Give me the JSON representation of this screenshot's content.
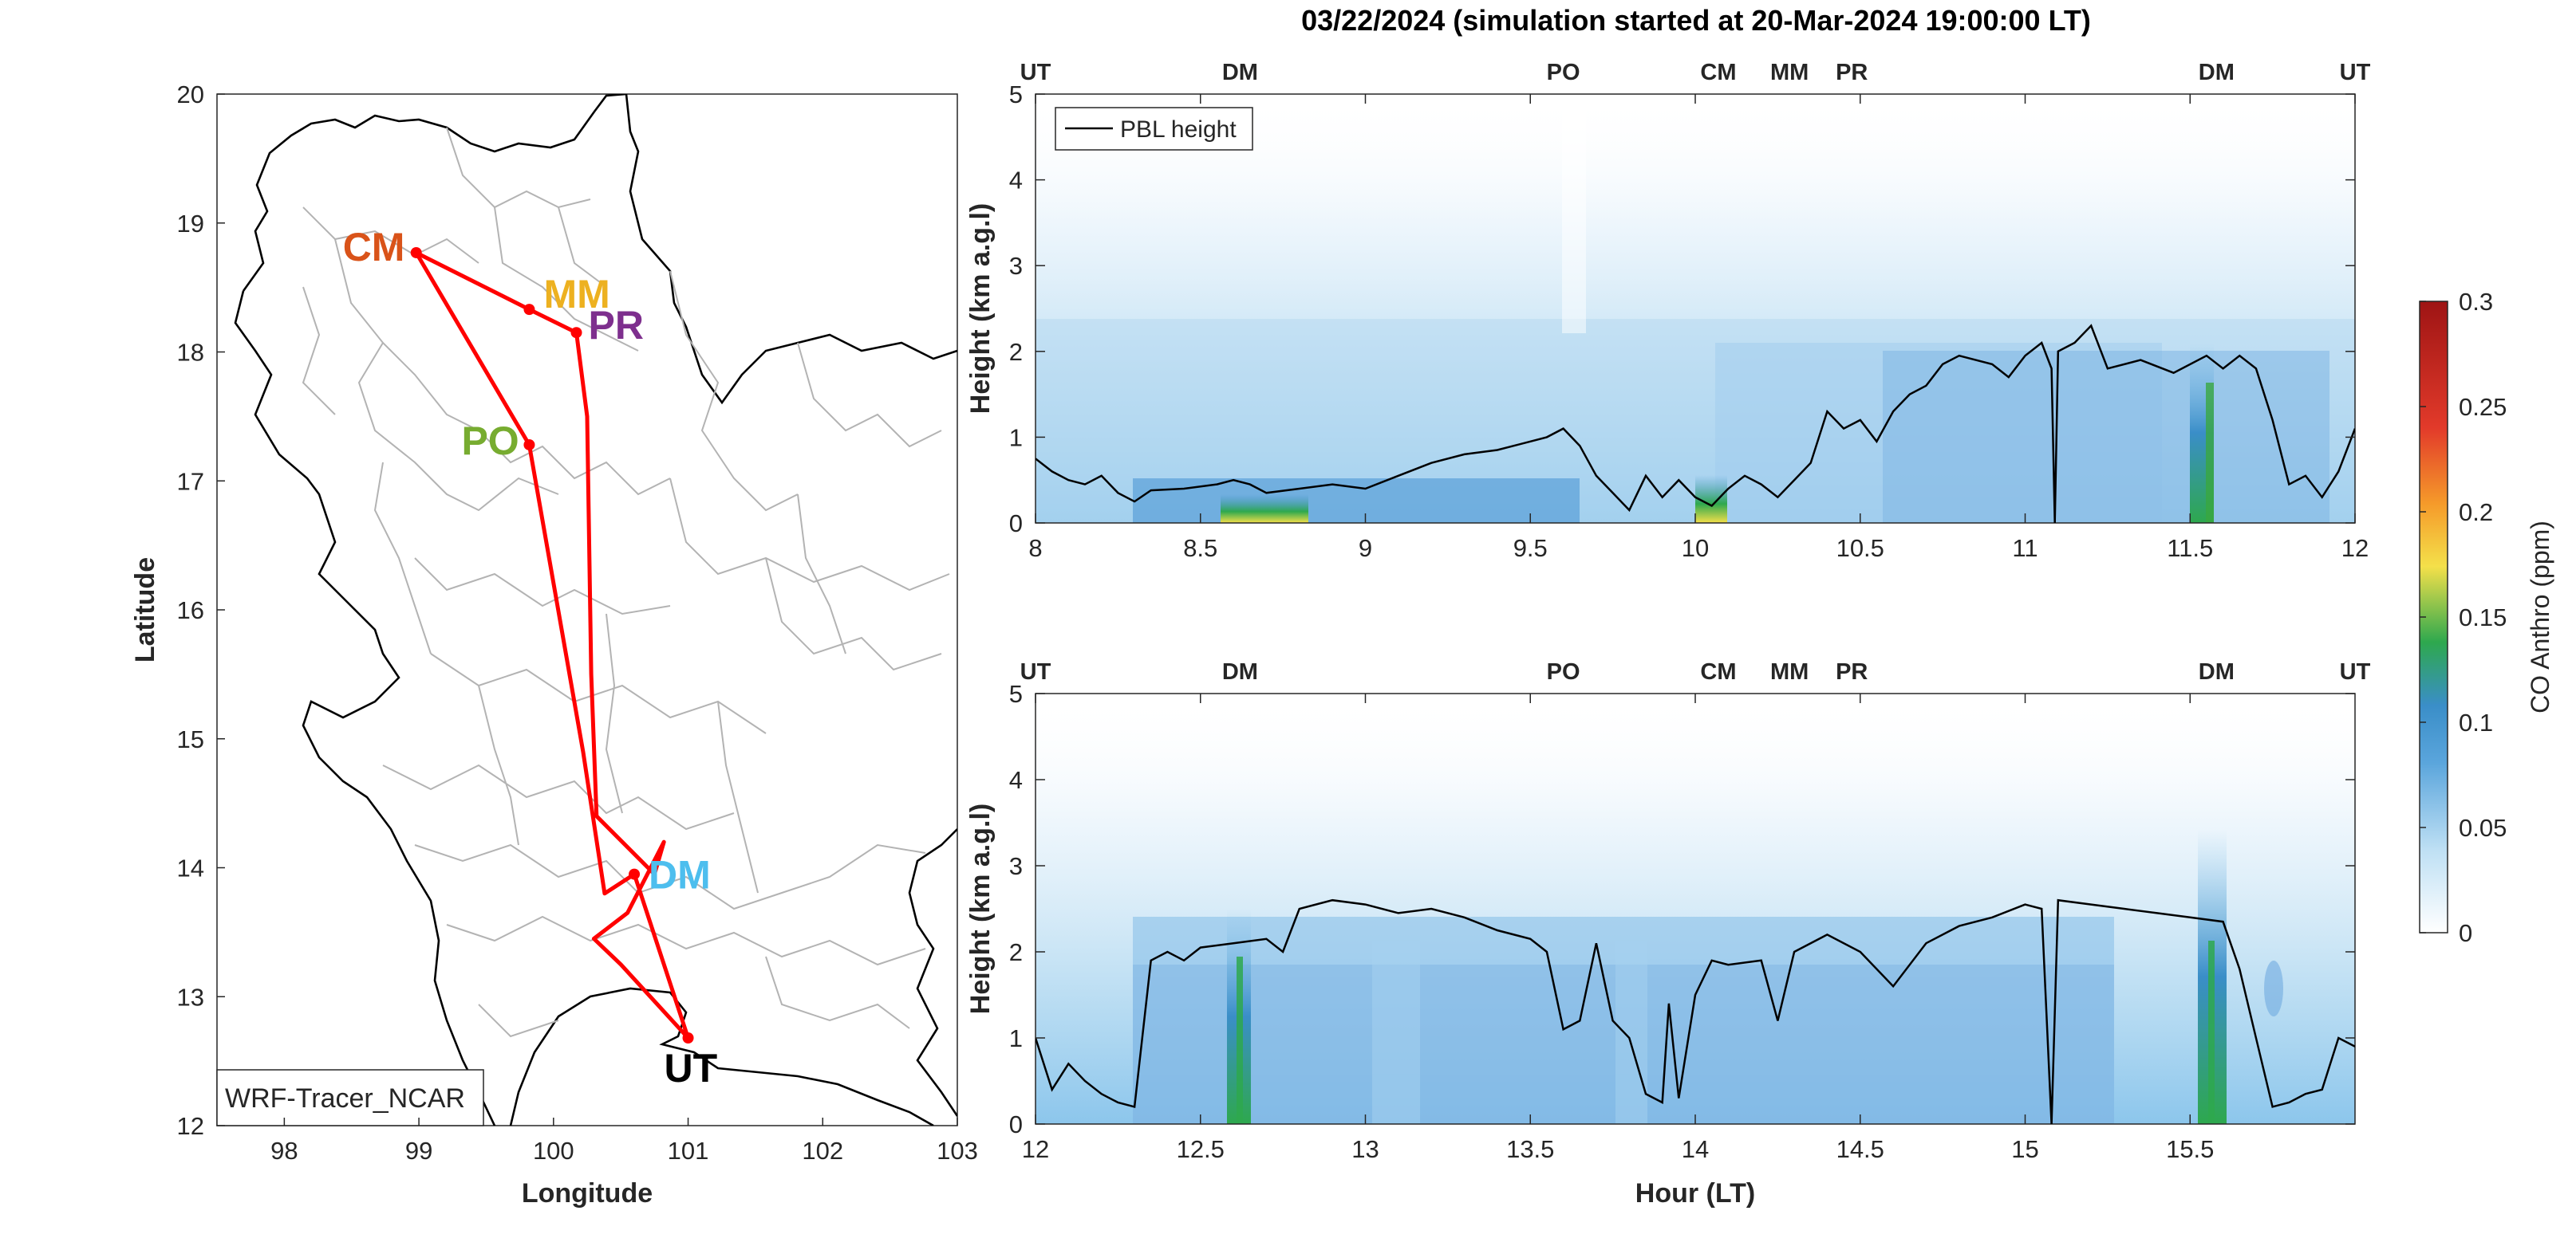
{
  "title": "03/22/2024 (simulation started at 20-Mar-2024 19:00:00 LT)",
  "colors": {
    "UT": "#000000",
    "DM": "#4DBEEE",
    "PO": "#77AC30",
    "CM": "#D95319",
    "MM": "#EDB120",
    "PR": "#7E2F8E",
    "track": "#FF0000",
    "pbl": "#000000",
    "border": "#b3b3b3",
    "coast": "#000000"
  },
  "chart_data": [
    {
      "type": "map",
      "xlabel": "Longitude",
      "ylabel": "Latitude",
      "xlim": [
        97.5,
        103
      ],
      "ylim": [
        12,
        20
      ],
      "xticks": [
        "98",
        "99",
        "100",
        "101",
        "102",
        "103"
      ],
      "yticks": [
        "12",
        "13",
        "14",
        "15",
        "16",
        "17",
        "18",
        "19",
        "20"
      ],
      "source_label": "WRF-Tracer_NCAR",
      "waypoints": [
        {
          "name": "CM",
          "lon": 98.98,
          "lat": 18.77
        },
        {
          "name": "MM",
          "lon": 99.82,
          "lat": 18.33
        },
        {
          "name": "PR",
          "lon": 100.17,
          "lat": 18.15
        },
        {
          "name": "PO",
          "lon": 99.82,
          "lat": 17.28
        },
        {
          "name": "DM",
          "lon": 100.6,
          "lat": 13.95
        },
        {
          "name": "UT",
          "lon": 101.0,
          "lat": 12.68
        }
      ],
      "track": [
        [
          101.0,
          12.68
        ],
        [
          100.6,
          13.95
        ],
        [
          100.38,
          13.8
        ],
        [
          100.22,
          14.9
        ],
        [
          99.82,
          17.28
        ],
        [
          98.98,
          18.77
        ],
        [
          99.82,
          18.33
        ],
        [
          100.17,
          18.15
        ],
        [
          100.25,
          17.5
        ],
        [
          100.28,
          15.5
        ],
        [
          100.32,
          14.4
        ],
        [
          100.75,
          13.95
        ],
        [
          100.82,
          14.2
        ],
        [
          100.55,
          13.65
        ],
        [
          100.3,
          13.45
        ],
        [
          100.5,
          13.25
        ],
        [
          101.0,
          12.68
        ]
      ]
    },
    {
      "type": "heatmap",
      "xlim": [
        8,
        12
      ],
      "ylim": [
        0,
        5
      ],
      "xticks": [
        "8",
        "8.5",
        "9",
        "9.5",
        "10",
        "10.5",
        "11",
        "11.5",
        "12"
      ],
      "yticks": [
        "0",
        "1",
        "2",
        "3",
        "4",
        "5"
      ],
      "ylabel": "Height (km a.g.l)",
      "legend": "PBL height",
      "top_markers": [
        {
          "name": "UT",
          "x": 8.0
        },
        {
          "name": "DM",
          "x": 8.62
        },
        {
          "name": "PO",
          "x": 9.6
        },
        {
          "name": "CM",
          "x": 10.07
        },
        {
          "name": "MM",
          "x": 10.32
        },
        {
          "name": "PR",
          "x": 10.45
        },
        {
          "name": "DM",
          "x": 11.58
        },
        {
          "name": "UT",
          "x": 12.0
        }
      ],
      "pbl_height": [
        [
          8.0,
          0.75
        ],
        [
          8.05,
          0.6
        ],
        [
          8.1,
          0.5
        ],
        [
          8.15,
          0.45
        ],
        [
          8.2,
          0.55
        ],
        [
          8.25,
          0.35
        ],
        [
          8.3,
          0.25
        ],
        [
          8.35,
          0.38
        ],
        [
          8.45,
          0.4
        ],
        [
          8.55,
          0.45
        ],
        [
          8.6,
          0.5
        ],
        [
          8.65,
          0.45
        ],
        [
          8.7,
          0.35
        ],
        [
          8.8,
          0.4
        ],
        [
          8.9,
          0.45
        ],
        [
          9.0,
          0.4
        ],
        [
          9.1,
          0.55
        ],
        [
          9.2,
          0.7
        ],
        [
          9.3,
          0.8
        ],
        [
          9.4,
          0.85
        ],
        [
          9.5,
          0.95
        ],
        [
          9.55,
          1.0
        ],
        [
          9.6,
          1.1
        ],
        [
          9.65,
          0.9
        ],
        [
          9.7,
          0.55
        ],
        [
          9.75,
          0.35
        ],
        [
          9.8,
          0.15
        ],
        [
          9.85,
          0.55
        ],
        [
          9.9,
          0.3
        ],
        [
          9.95,
          0.5
        ],
        [
          10.0,
          0.3
        ],
        [
          10.05,
          0.2
        ],
        [
          10.1,
          0.4
        ],
        [
          10.15,
          0.55
        ],
        [
          10.2,
          0.45
        ],
        [
          10.25,
          0.3
        ],
        [
          10.3,
          0.5
        ],
        [
          10.35,
          0.7
        ],
        [
          10.4,
          1.3
        ],
        [
          10.45,
          1.1
        ],
        [
          10.5,
          1.2
        ],
        [
          10.55,
          0.95
        ],
        [
          10.6,
          1.3
        ],
        [
          10.65,
          1.5
        ],
        [
          10.7,
          1.6
        ],
        [
          10.75,
          1.85
        ],
        [
          10.8,
          1.95
        ],
        [
          10.9,
          1.85
        ],
        [
          10.95,
          1.7
        ],
        [
          11.0,
          1.95
        ],
        [
          11.05,
          2.1
        ],
        [
          11.08,
          1.8
        ],
        [
          11.09,
          0.0
        ],
        [
          11.1,
          2.0
        ],
        [
          11.15,
          2.1
        ],
        [
          11.2,
          2.3
        ],
        [
          11.25,
          1.8
        ],
        [
          11.35,
          1.9
        ],
        [
          11.45,
          1.75
        ],
        [
          11.55,
          1.95
        ],
        [
          11.6,
          1.8
        ],
        [
          11.65,
          1.95
        ],
        [
          11.7,
          1.8
        ],
        [
          11.75,
          1.2
        ],
        [
          11.8,
          0.45
        ],
        [
          11.85,
          0.55
        ],
        [
          11.9,
          0.3
        ],
        [
          11.95,
          0.6
        ],
        [
          12.0,
          1.1
        ]
      ]
    },
    {
      "type": "heatmap",
      "xlim": [
        12,
        16
      ],
      "ylim": [
        0,
        5
      ],
      "xticks": [
        "12",
        "12.5",
        "13",
        "13.5",
        "14",
        "14.5",
        "15",
        "15.5"
      ],
      "yticks": [
        "0",
        "1",
        "2",
        "3",
        "4",
        "5"
      ],
      "xlabel": "Hour (LT)",
      "ylabel": "Height (km a.g.l)",
      "top_markers": [
        {
          "name": "UT",
          "x": 12.0
        },
        {
          "name": "DM",
          "x": 12.62
        },
        {
          "name": "PO",
          "x": 13.6
        },
        {
          "name": "CM",
          "x": 14.07
        },
        {
          "name": "MM",
          "x": 14.32
        },
        {
          "name": "PR",
          "x": 14.45
        },
        {
          "name": "DM",
          "x": 15.58
        },
        {
          "name": "UT",
          "x": 16.0
        }
      ],
      "pbl_height": [
        [
          12.0,
          1.0
        ],
        [
          12.05,
          0.4
        ],
        [
          12.1,
          0.7
        ],
        [
          12.15,
          0.5
        ],
        [
          12.2,
          0.35
        ],
        [
          12.25,
          0.25
        ],
        [
          12.3,
          0.2
        ],
        [
          12.35,
          1.9
        ],
        [
          12.4,
          2.0
        ],
        [
          12.45,
          1.9
        ],
        [
          12.5,
          2.05
        ],
        [
          12.6,
          2.1
        ],
        [
          12.7,
          2.15
        ],
        [
          12.75,
          2.0
        ],
        [
          12.8,
          2.5
        ],
        [
          12.9,
          2.6
        ],
        [
          13.0,
          2.55
        ],
        [
          13.1,
          2.45
        ],
        [
          13.2,
          2.5
        ],
        [
          13.3,
          2.4
        ],
        [
          13.4,
          2.25
        ],
        [
          13.5,
          2.15
        ],
        [
          13.55,
          2.0
        ],
        [
          13.6,
          1.1
        ],
        [
          13.65,
          1.2
        ],
        [
          13.7,
          2.1
        ],
        [
          13.75,
          1.2
        ],
        [
          13.8,
          1.0
        ],
        [
          13.85,
          0.35
        ],
        [
          13.9,
          0.25
        ],
        [
          13.92,
          1.4
        ],
        [
          13.95,
          0.3
        ],
        [
          14.0,
          1.5
        ],
        [
          14.05,
          1.9
        ],
        [
          14.1,
          1.85
        ],
        [
          14.2,
          1.9
        ],
        [
          14.25,
          1.2
        ],
        [
          14.3,
          2.0
        ],
        [
          14.4,
          2.2
        ],
        [
          14.5,
          2.0
        ],
        [
          14.6,
          1.6
        ],
        [
          14.7,
          2.1
        ],
        [
          14.8,
          2.3
        ],
        [
          14.9,
          2.4
        ],
        [
          15.0,
          2.55
        ],
        [
          15.05,
          2.5
        ],
        [
          15.08,
          0.0
        ],
        [
          15.1,
          2.6
        ],
        [
          15.2,
          2.55
        ],
        [
          15.3,
          2.5
        ],
        [
          15.4,
          2.45
        ],
        [
          15.5,
          2.4
        ],
        [
          15.6,
          2.35
        ],
        [
          15.65,
          1.8
        ],
        [
          15.7,
          1.0
        ],
        [
          15.75,
          0.2
        ],
        [
          15.8,
          0.25
        ],
        [
          15.85,
          0.35
        ],
        [
          15.9,
          0.4
        ],
        [
          15.95,
          1.0
        ],
        [
          16.0,
          0.9
        ]
      ]
    }
  ],
  "colorbar": {
    "label": "CO Anthro (ppm)",
    "ticks": [
      "0",
      "0.05",
      "0.1",
      "0.15",
      "0.2",
      "0.25",
      "0.3"
    ],
    "range": [
      0,
      0.3
    ]
  }
}
